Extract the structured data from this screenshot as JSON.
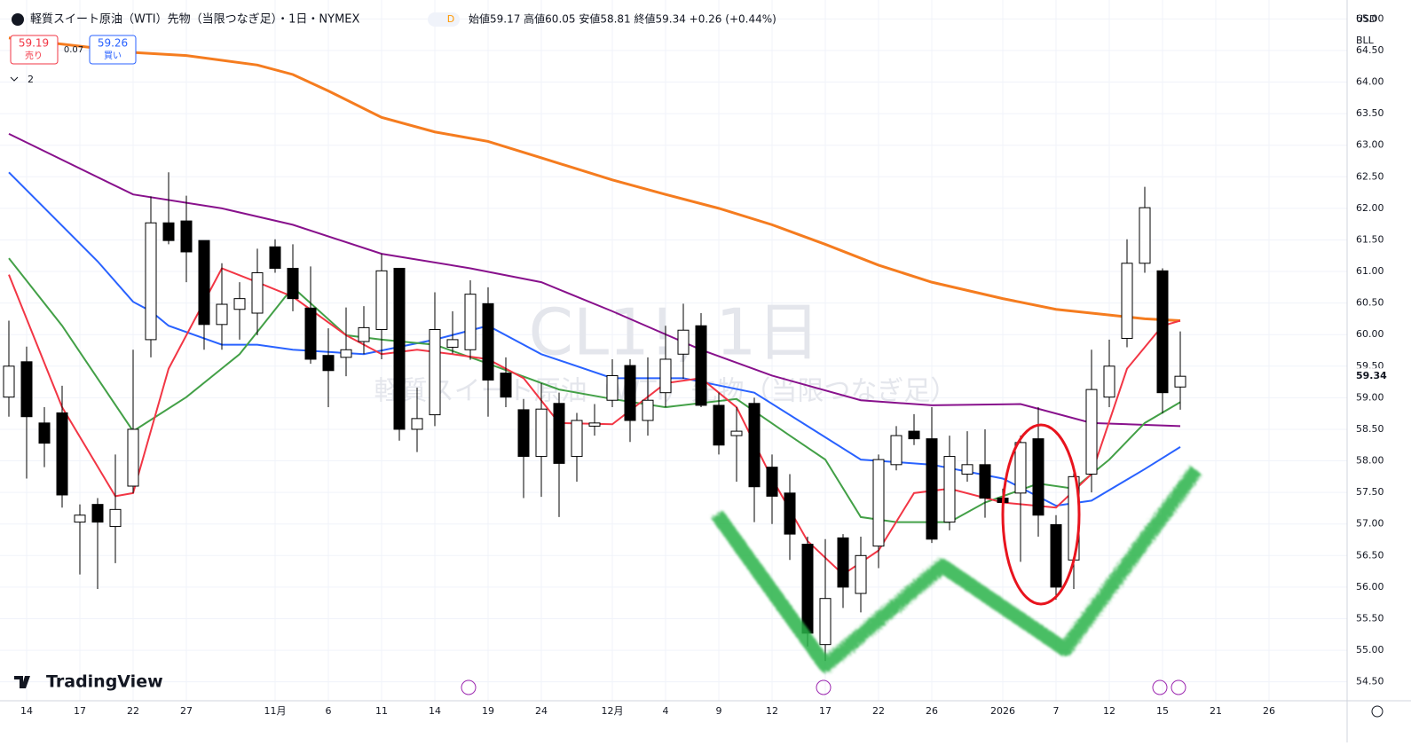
{
  "header": {
    "symbol": "軽質スイート原油（WTI）先物（当限つなぎ足）・1日・NYMEX",
    "badge": "D",
    "ohlc": "始値59.17 高値60.05 安値58.81 終値59.34 +0.26 (+0.44%)",
    "sell_price": "59.19",
    "sell_label": "売り",
    "spread": "0.07",
    "buy_price": "59.26",
    "buy_label": "買い",
    "indicator_count": "2"
  },
  "axis_panel": {
    "currency": "USD",
    "unit": "BLL",
    "last_price": "59.34"
  },
  "watermark": {
    "title": "CL1!, 1日",
    "subtitle": "軽質スイート原油（WTI）先物（当限つなぎ足）"
  },
  "logo": "TradingView",
  "chart_data": {
    "type": "candlestick",
    "open": [
      59.01,
      59.57,
      58.6,
      58.76,
      57.03,
      57.31,
      56.96,
      57.6,
      59.92,
      61.77,
      61.8,
      61.49,
      60.16,
      60.4,
      60.34,
      61.39,
      61.05,
      60.42,
      59.67,
      59.64,
      59.89,
      60.08,
      61.05,
      58.5,
      58.73,
      59.8,
      59.76,
      60.49,
      59.39,
      58.81,
      58.07,
      58.91,
      58.07,
      58.55,
      58.96,
      59.51,
      58.64,
      59.08,
      59.69,
      60.14,
      58.88,
      58.4,
      58.91,
      57.9,
      57.49,
      56.68,
      55.09,
      56.78,
      55.9,
      56.65,
      57.94,
      58.47,
      58.35,
      57.03,
      57.79,
      57.94,
      57.41,
      57.49,
      58.35,
      56.99,
      56.43,
      57.79,
      59.01,
      59.94,
      61.13,
      61.01,
      59.17
    ],
    "high": [
      60.22,
      59.81,
      58.85,
      59.19,
      57.31,
      57.41,
      58.1,
      59.76,
      62.19,
      62.57,
      62.2,
      61.49,
      61.13,
      60.83,
      61.36,
      61.51,
      61.43,
      61.08,
      60.1,
      60.43,
      60.45,
      61.28,
      61.05,
      59.16,
      60.67,
      60.37,
      60.86,
      60.75,
      59.64,
      58.98,
      59.23,
      59.08,
      58.76,
      58.9,
      59.61,
      59.61,
      59.64,
      60.14,
      60.49,
      60.34,
      59.08,
      58.85,
      59.0,
      58.1,
      57.79,
      56.8,
      56.76,
      56.84,
      56.8,
      58.1,
      58.55,
      58.74,
      58.85,
      58.4,
      58.47,
      58.5,
      57.56,
      58.4,
      58.85,
      57.14,
      57.87,
      59.76,
      59.92,
      61.51,
      62.34,
      61.05,
      60.05
    ],
    "low": [
      58.7,
      57.72,
      57.9,
      57.26,
      56.2,
      55.97,
      56.38,
      57.49,
      59.64,
      61.43,
      60.83,
      59.76,
      59.76,
      59.92,
      59.99,
      60.98,
      60.37,
      59.54,
      58.85,
      59.34,
      59.69,
      59.61,
      58.32,
      58.14,
      58.55,
      59.7,
      59.6,
      58.7,
      58.85,
      57.41,
      57.43,
      57.11,
      57.67,
      58.4,
      58.85,
      58.3,
      58.4,
      58.85,
      59.3,
      58.85,
      58.1,
      57.67,
      57.03,
      57.0,
      56.43,
      55.06,
      54.83,
      55.67,
      55.6,
      56.3,
      57.85,
      58.25,
      56.7,
      56.9,
      57.67,
      57.1,
      57.2,
      56.4,
      56.8,
      55.8,
      55.97,
      57.5,
      58.85,
      59.8,
      60.98,
      58.75,
      58.81
    ],
    "close": [
      59.5,
      58.7,
      58.28,
      57.46,
      57.14,
      57.03,
      57.23,
      58.5,
      61.77,
      61.49,
      61.31,
      60.16,
      60.48,
      60.57,
      60.98,
      61.05,
      60.57,
      59.61,
      59.43,
      59.76,
      60.11,
      61.01,
      58.5,
      58.67,
      60.08,
      59.92,
      60.64,
      59.28,
      59.01,
      58.07,
      58.82,
      57.96,
      58.64,
      58.6,
      59.35,
      58.64,
      58.96,
      59.61,
      60.07,
      58.88,
      58.25,
      58.47,
      57.59,
      57.44,
      56.84,
      55.27,
      55.82,
      56.0,
      56.5,
      58.02,
      58.4,
      58.35,
      56.76,
      58.07,
      57.94,
      57.41,
      57.34,
      58.29,
      57.14,
      56.0,
      57.75,
      59.13,
      59.5,
      61.13,
      62.01,
      59.08,
      59.34
    ],
    "up_color": "#ffffff",
    "down_color": "#000000",
    "lines": [
      {
        "color": "#f57c1f",
        "x": [
          0,
          7,
          10,
          14,
          16,
          18,
          21,
          24,
          27,
          30,
          34,
          37,
          40,
          43,
          46,
          49,
          52,
          56,
          59,
          62,
          64,
          66
        ],
        "values": [
          64.7,
          64.47,
          64.42,
          64.27,
          64.12,
          63.86,
          63.44,
          63.21,
          63.06,
          62.8,
          62.45,
          62.22,
          62.0,
          61.74,
          61.43,
          61.1,
          60.83,
          60.57,
          60.4,
          60.31,
          60.25,
          60.22
        ]
      },
      {
        "color": "#88118c",
        "x": [
          0,
          7,
          12,
          16,
          21,
          26,
          30,
          34,
          39,
          43,
          48,
          52,
          57,
          61,
          66
        ],
        "values": [
          63.18,
          62.22,
          62.0,
          61.74,
          61.28,
          61.05,
          60.83,
          60.37,
          59.76,
          59.35,
          58.96,
          58.88,
          58.9,
          58.6,
          58.55
        ]
      },
      {
        "color": "#2962ff",
        "x": [
          0,
          5,
          7,
          8,
          9,
          12,
          14,
          16,
          20,
          24,
          27,
          30,
          34,
          38,
          42,
          45,
          48,
          52,
          56,
          59,
          61,
          64,
          66
        ],
        "values": [
          62.57,
          61.16,
          60.52,
          60.37,
          60.14,
          59.84,
          59.84,
          59.76,
          59.69,
          59.92,
          60.14,
          59.69,
          59.31,
          59.31,
          59.08,
          58.55,
          58.02,
          57.94,
          57.72,
          57.29,
          57.37,
          57.87,
          58.22
        ]
      },
      {
        "color": "#43a047",
        "x": [
          0,
          3,
          7,
          10,
          13,
          16,
          19,
          21,
          24,
          27,
          31,
          34,
          37,
          41,
          44,
          46,
          48,
          50,
          53,
          55,
          58,
          60,
          62,
          64,
          66
        ],
        "values": [
          61.21,
          60.14,
          58.47,
          59.01,
          59.69,
          60.75,
          59.99,
          59.92,
          59.84,
          59.54,
          59.13,
          58.98,
          58.85,
          58.98,
          58.4,
          58.02,
          57.11,
          57.03,
          57.03,
          57.34,
          57.64,
          57.56,
          58.02,
          58.6,
          58.93
        ]
      },
      {
        "color": "#f23645",
        "x": [
          0,
          3,
          6,
          7,
          9,
          12,
          14,
          16,
          19,
          21,
          23,
          25,
          27,
          29,
          31,
          34,
          37,
          39,
          41,
          43,
          45,
          47,
          49,
          51,
          53,
          56,
          59,
          61,
          63,
          65,
          66
        ],
        "values": [
          60.95,
          58.85,
          57.44,
          57.49,
          59.46,
          61.05,
          60.83,
          60.6,
          59.99,
          59.69,
          59.76,
          59.69,
          59.61,
          59.31,
          58.6,
          58.58,
          59.23,
          59.31,
          58.85,
          57.72,
          56.73,
          56.2,
          56.58,
          57.49,
          57.56,
          57.34,
          57.26,
          57.79,
          59.46,
          60.14,
          60.22
        ]
      }
    ],
    "ylim": [
      54.2,
      65.3
    ],
    "yticks": [
      {
        "value": 54.5,
        "label": "54.50"
      },
      {
        "value": 55,
        "label": "55.00"
      },
      {
        "value": 55.5,
        "label": "55.50"
      },
      {
        "value": 56,
        "label": "56.00"
      },
      {
        "value": 56.5,
        "label": "56.50"
      },
      {
        "value": 57,
        "label": "57.00"
      },
      {
        "value": 57.5,
        "label": "57.50"
      },
      {
        "value": 58,
        "label": "58.00"
      },
      {
        "value": 58.5,
        "label": "58.50"
      },
      {
        "value": 59,
        "label": "59.00"
      },
      {
        "value": 59.5,
        "label": "59.50"
      },
      {
        "value": 60,
        "label": "60.00"
      },
      {
        "value": 60.5,
        "label": "60.50"
      },
      {
        "value": 61,
        "label": "61.00"
      },
      {
        "value": 61.5,
        "label": "61.50"
      },
      {
        "value": 62,
        "label": "62.00"
      },
      {
        "value": 62.5,
        "label": "62.50"
      },
      {
        "value": 63,
        "label": "63.00"
      },
      {
        "value": 63.5,
        "label": "63.50"
      },
      {
        "value": 64,
        "label": "64.00"
      },
      {
        "value": 64.5,
        "label": "64.50"
      },
      {
        "value": 65,
        "label": "65.00"
      }
    ],
    "xlim": [
      -0.5,
      75.4
    ],
    "xticks": [
      {
        "value": 1,
        "label": "14"
      },
      {
        "value": 4,
        "label": "17"
      },
      {
        "value": 7,
        "label": "22"
      },
      {
        "value": 10,
        "label": "27"
      },
      {
        "value": 15,
        "label": "11月"
      },
      {
        "value": 18,
        "label": "6"
      },
      {
        "value": 21,
        "label": "11"
      },
      {
        "value": 24,
        "label": "14"
      },
      {
        "value": 27,
        "label": "19"
      },
      {
        "value": 30,
        "label": "24"
      },
      {
        "value": 34,
        "label": "12月"
      },
      {
        "value": 37,
        "label": "4"
      },
      {
        "value": 40,
        "label": "9"
      },
      {
        "value": 43,
        "label": "12"
      },
      {
        "value": 46,
        "label": "17"
      },
      {
        "value": 49,
        "label": "22"
      },
      {
        "value": 52,
        "label": "26"
      },
      {
        "value": 56,
        "label": "2026"
      },
      {
        "value": 59,
        "label": "7"
      },
      {
        "value": 62,
        "label": "12"
      },
      {
        "value": 65,
        "label": "15"
      },
      {
        "value": 68,
        "label": "21"
      },
      {
        "value": 71,
        "label": "26"
      }
    ],
    "grid": true
  }
}
